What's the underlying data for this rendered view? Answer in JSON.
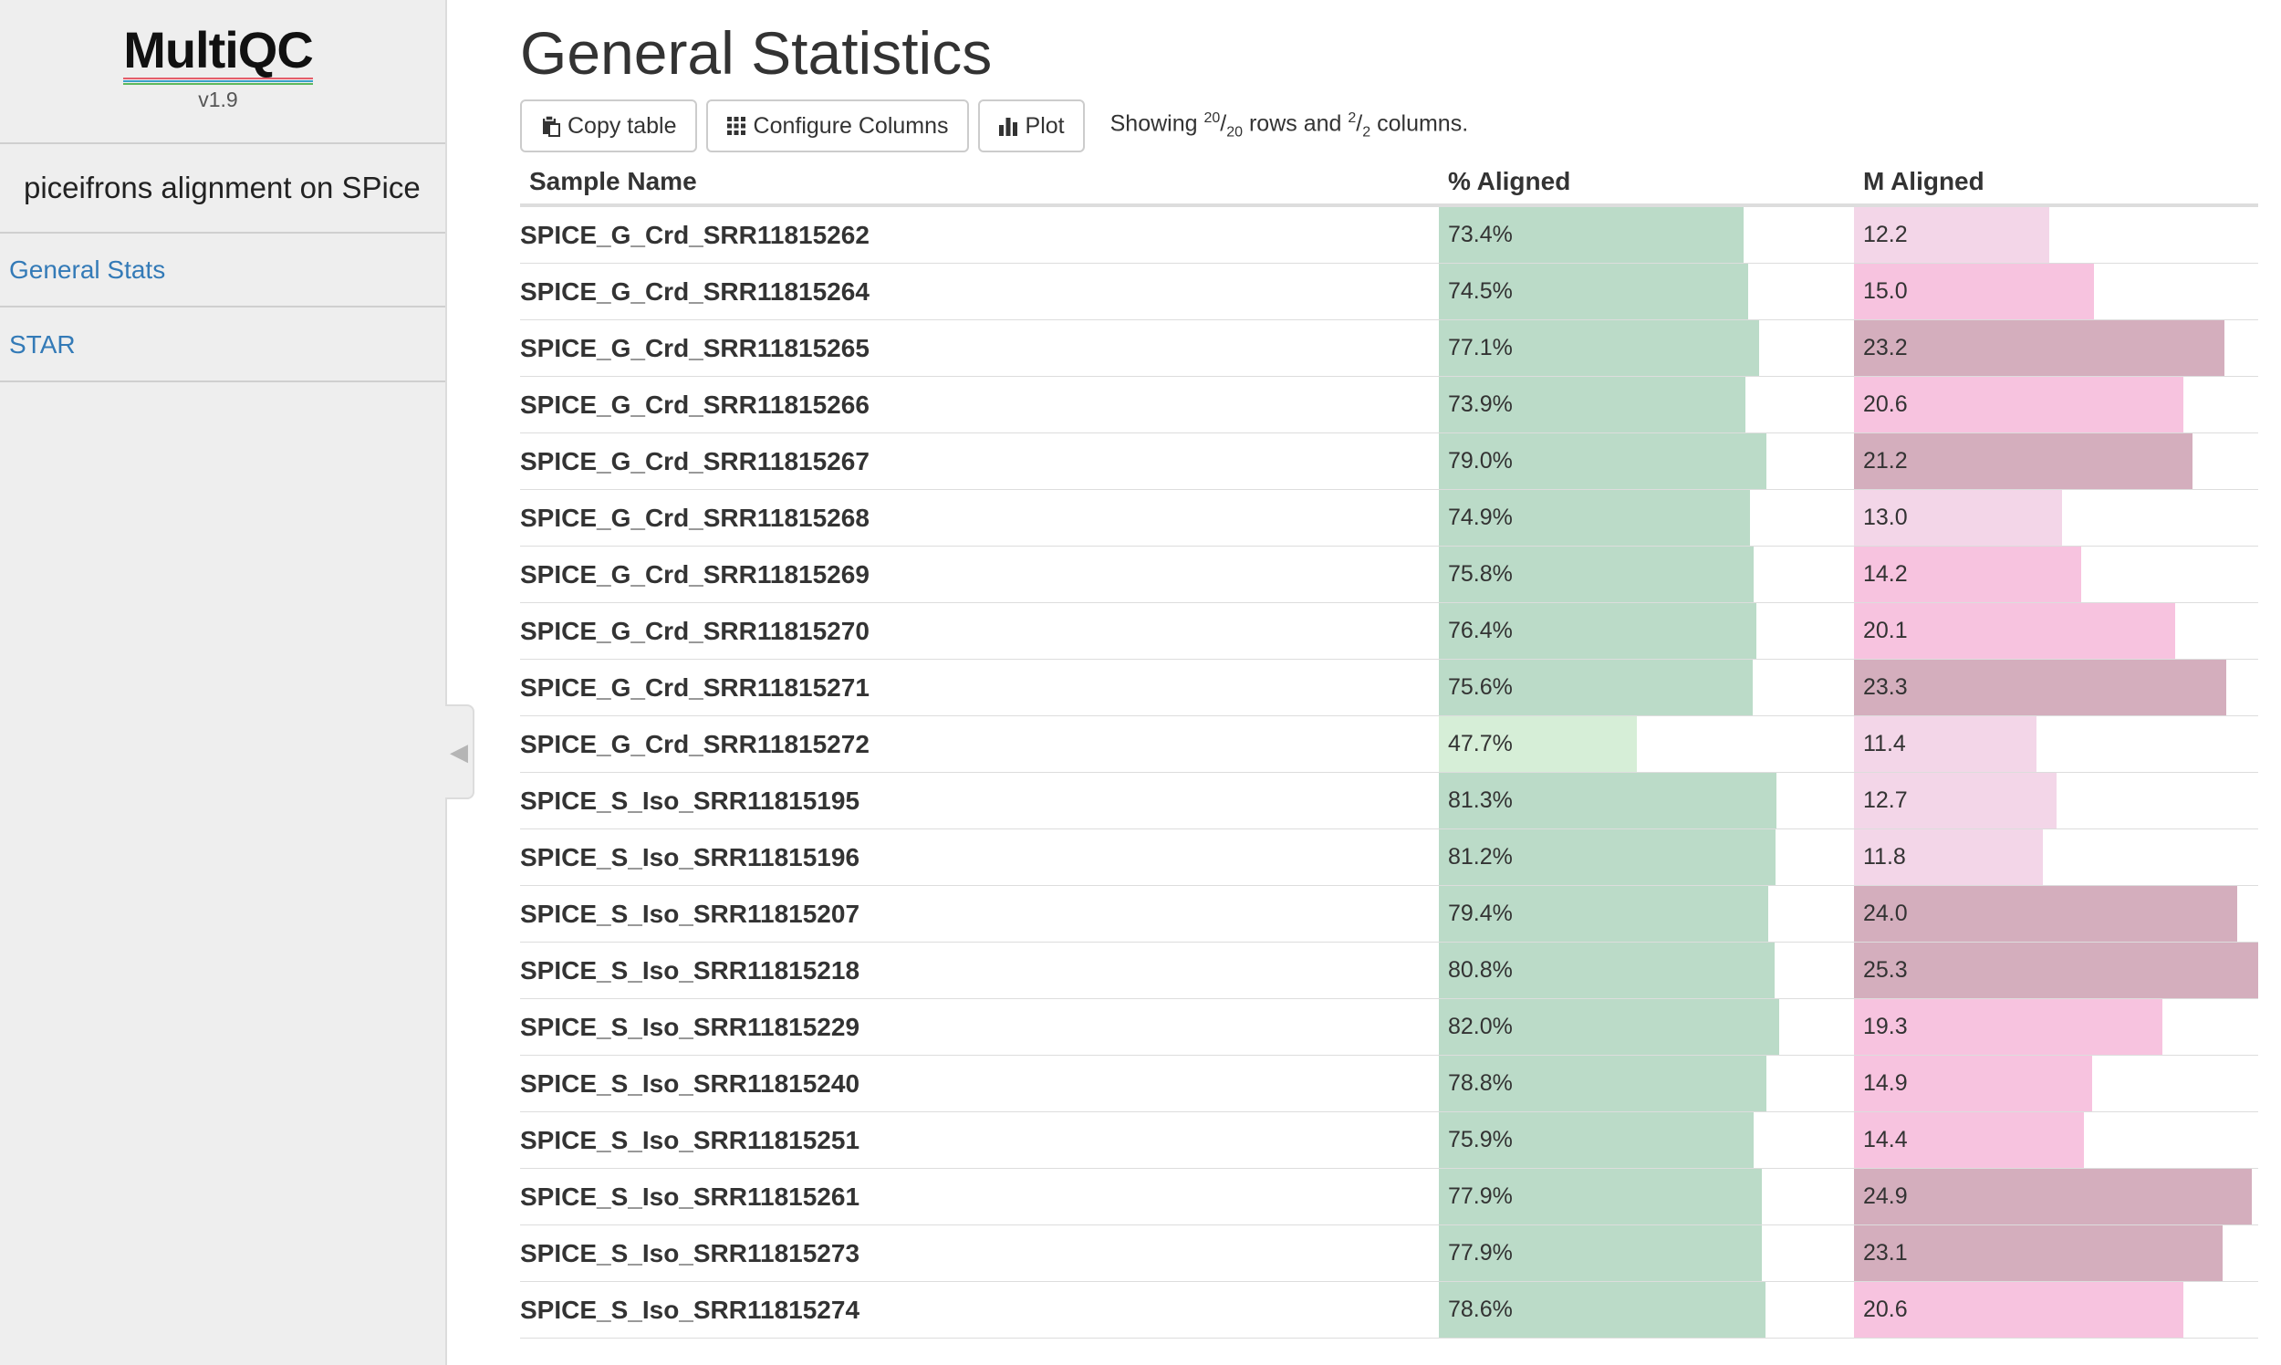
{
  "sidebar": {
    "logo_text": "MultiQC",
    "version": "v1.9",
    "report_title": "piceifrons alignment on SPice",
    "nav": [
      {
        "label": "General Stats"
      },
      {
        "label": "STAR"
      }
    ]
  },
  "main": {
    "title": "General Statistics",
    "toolbar": {
      "copy_label": "Copy table",
      "configure_label": "Configure Columns",
      "plot_label": "Plot",
      "showing_prefix": "Showing",
      "rows_shown": "20",
      "rows_total": "20",
      "rows_word": "rows and",
      "cols_shown": "2",
      "cols_total": "2",
      "cols_word": "columns."
    },
    "table": {
      "columns": [
        "Sample Name",
        "% Aligned",
        "M Aligned"
      ],
      "pct_aligned_max": 100,
      "m_aligned_max": 25.3,
      "rows": [
        {
          "sample": "SPICE_G_Crd_SRR11815262",
          "pct": "73.4%",
          "pct_value": 73.4,
          "m": "12.2",
          "m_value": 12.2
        },
        {
          "sample": "SPICE_G_Crd_SRR11815264",
          "pct": "74.5%",
          "pct_value": 74.5,
          "m": "15.0",
          "m_value": 15.0
        },
        {
          "sample": "SPICE_G_Crd_SRR11815265",
          "pct": "77.1%",
          "pct_value": 77.1,
          "m": "23.2",
          "m_value": 23.2
        },
        {
          "sample": "SPICE_G_Crd_SRR11815266",
          "pct": "73.9%",
          "pct_value": 73.9,
          "m": "20.6",
          "m_value": 20.6
        },
        {
          "sample": "SPICE_G_Crd_SRR11815267",
          "pct": "79.0%",
          "pct_value": 79.0,
          "m": "21.2",
          "m_value": 21.2
        },
        {
          "sample": "SPICE_G_Crd_SRR11815268",
          "pct": "74.9%",
          "pct_value": 74.9,
          "m": "13.0",
          "m_value": 13.0
        },
        {
          "sample": "SPICE_G_Crd_SRR11815269",
          "pct": "75.8%",
          "pct_value": 75.8,
          "m": "14.2",
          "m_value": 14.2
        },
        {
          "sample": "SPICE_G_Crd_SRR11815270",
          "pct": "76.4%",
          "pct_value": 76.4,
          "m": "20.1",
          "m_value": 20.1
        },
        {
          "sample": "SPICE_G_Crd_SRR11815271",
          "pct": "75.6%",
          "pct_value": 75.6,
          "m": "23.3",
          "m_value": 23.3
        },
        {
          "sample": "SPICE_G_Crd_SRR11815272",
          "pct": "47.7%",
          "pct_value": 47.7,
          "m": "11.4",
          "m_value": 11.4
        },
        {
          "sample": "SPICE_S_Iso_SRR11815195",
          "pct": "81.3%",
          "pct_value": 81.3,
          "m": "12.7",
          "m_value": 12.7
        },
        {
          "sample": "SPICE_S_Iso_SRR11815196",
          "pct": "81.2%",
          "pct_value": 81.2,
          "m": "11.8",
          "m_value": 11.8
        },
        {
          "sample": "SPICE_S_Iso_SRR11815207",
          "pct": "79.4%",
          "pct_value": 79.4,
          "m": "24.0",
          "m_value": 24.0
        },
        {
          "sample": "SPICE_S_Iso_SRR11815218",
          "pct": "80.8%",
          "pct_value": 80.8,
          "m": "25.3",
          "m_value": 25.3
        },
        {
          "sample": "SPICE_S_Iso_SRR11815229",
          "pct": "82.0%",
          "pct_value": 82.0,
          "m": "19.3",
          "m_value": 19.3
        },
        {
          "sample": "SPICE_S_Iso_SRR11815240",
          "pct": "78.8%",
          "pct_value": 78.8,
          "m": "14.9",
          "m_value": 14.9
        },
        {
          "sample": "SPICE_S_Iso_SRR11815251",
          "pct": "75.9%",
          "pct_value": 75.9,
          "m": "14.4",
          "m_value": 14.4
        },
        {
          "sample": "SPICE_S_Iso_SRR11815261",
          "pct": "77.9%",
          "pct_value": 77.9,
          "m": "24.9",
          "m_value": 24.9
        },
        {
          "sample": "SPICE_S_Iso_SRR11815273",
          "pct": "77.9%",
          "pct_value": 77.9,
          "m": "23.1",
          "m_value": 23.1
        },
        {
          "sample": "SPICE_S_Iso_SRR11815274",
          "pct": "78.6%",
          "pct_value": 78.6,
          "m": "20.6",
          "m_value": 20.6
        }
      ]
    }
  },
  "colors": {
    "link": "#337ab7",
    "pct_bar_high": "#bbdbc8",
    "pct_bar_low": "#d6eed7",
    "m_bar_low": "#f3d6e8",
    "m_bar_mid": "#f7c3df",
    "m_bar_high": "#d4aebd"
  },
  "icons": {
    "copy": "clipboard-icon",
    "configure": "grid-icon",
    "plot": "bar-chart-icon",
    "collapse": "chevron-left-icon"
  }
}
